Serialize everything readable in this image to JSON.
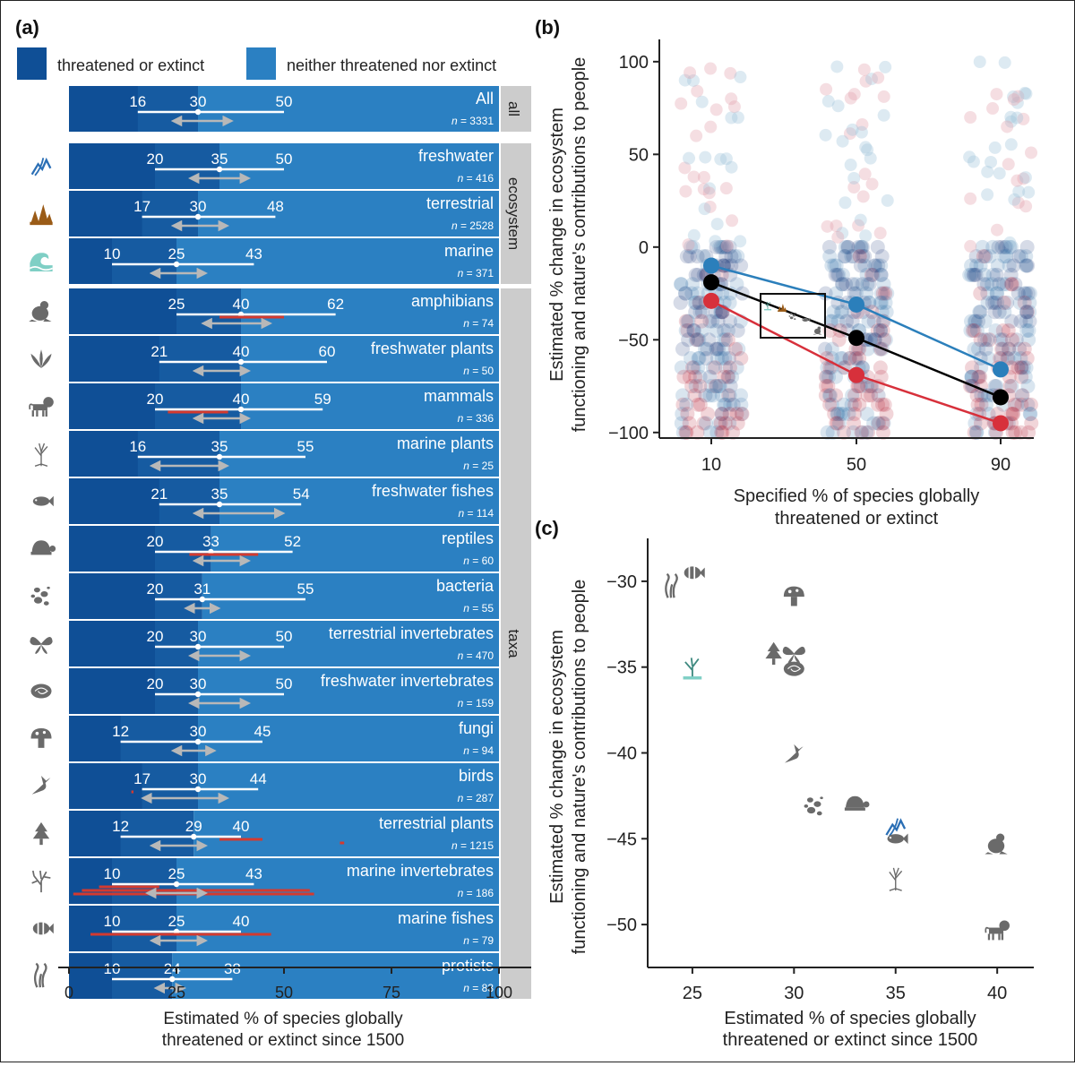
{
  "colors": {
    "threatened": "#0f4f96",
    "neither": "#2b80c2",
    "white_line": "#ffffff",
    "grey_arrow": "#b8b8b8",
    "red_line": "#d43a2f",
    "strip": "#cccccc",
    "series_blue": "#2b7fbb",
    "series_black": "#000000",
    "series_red": "#d7303b",
    "icon_grey": "#6a6a6a",
    "icon_blue": "#2b6fb5",
    "icon_brown": "#9a5b17",
    "icon_teal": "#7fcfc5"
  },
  "panel_a": {
    "label": "(a)",
    "legend": [
      "threatened or extinct",
      "neither threatened nor extinct"
    ],
    "xlabel": [
      "Estimated % of species globally",
      "threatened or extinct since 1500"
    ],
    "xticks": [
      0,
      25,
      50,
      75,
      100
    ],
    "n_prefix": "n",
    "groups": [
      {
        "strip": "all",
        "rows": [
          {
            "name": "All",
            "n": "= 3331",
            "icon": "none",
            "low": 16,
            "mid": 30,
            "high": 50,
            "arrow": [
              25,
              37
            ],
            "red": []
          }
        ]
      },
      {
        "strip": "ecosystem",
        "rows": [
          {
            "name": "freshwater",
            "n": "= 416",
            "icon": "river-icon",
            "low": 20,
            "mid": 35,
            "high": 50,
            "arrow": [
              29,
              41
            ],
            "red": []
          },
          {
            "name": "terrestrial",
            "n": "= 2528",
            "icon": "forest-icon",
            "low": 17,
            "mid": 30,
            "high": 48,
            "arrow": [
              25,
              36
            ],
            "red": []
          },
          {
            "name": "marine",
            "n": "= 371",
            "icon": "wave-icon",
            "low": 10,
            "mid": 25,
            "high": 43,
            "arrow": [
              20,
              31
            ],
            "red": []
          }
        ]
      },
      {
        "strip": "taxa",
        "rows": [
          {
            "name": "amphibians",
            "n": "= 74",
            "icon": "frog-icon",
            "low": 25,
            "mid": 40,
            "high": 62,
            "arrow": [
              32,
              46
            ],
            "red": [
              [
                35,
                50
              ]
            ]
          },
          {
            "name": "freshwater plants",
            "n": "= 50",
            "icon": "aquatic-plant-icon",
            "low": 21,
            "mid": 40,
            "high": 60,
            "arrow": [
              30,
              41
            ],
            "red": []
          },
          {
            "name": "mammals",
            "n": "= 336",
            "icon": "lion-icon",
            "low": 20,
            "mid": 40,
            "high": 59,
            "arrow": [
              30,
              41
            ],
            "red": [
              [
                23,
                37
              ]
            ]
          },
          {
            "name": "marine plants",
            "n": "= 25",
            "icon": "mangrove-icon",
            "low": 16,
            "mid": 35,
            "high": 55,
            "arrow": [
              20,
              36
            ],
            "red": []
          },
          {
            "name": "freshwater fishes",
            "n": "= 114",
            "icon": "fish-icon",
            "low": 21,
            "mid": 35,
            "high": 54,
            "arrow": [
              30,
              49
            ],
            "red": []
          },
          {
            "name": "reptiles",
            "n": "= 60",
            "icon": "turtle-icon",
            "low": 20,
            "mid": 33,
            "high": 52,
            "arrow": [
              30,
              41
            ],
            "red": [
              [
                28,
                44
              ]
            ]
          },
          {
            "name": "bacteria",
            "n": "= 55",
            "icon": "bacteria-icon",
            "low": 20,
            "mid": 31,
            "high": 55,
            "arrow": [
              28,
              34
            ],
            "red": []
          },
          {
            "name": "terrestrial invertebrates",
            "n": "= 470",
            "icon": "butterfly-icon",
            "low": 20,
            "mid": 30,
            "high": 50,
            "arrow": [
              29,
              41
            ],
            "red": []
          },
          {
            "name": "freshwater invertebrates",
            "n": "= 159",
            "icon": "snail-icon",
            "low": 20,
            "mid": 30,
            "high": 50,
            "arrow": [
              29,
              41
            ],
            "red": []
          },
          {
            "name": "fungi",
            "n": "= 94",
            "icon": "mushroom-icon",
            "low": 12,
            "mid": 30,
            "high": 45,
            "arrow": [
              25,
              33
            ],
            "red": []
          },
          {
            "name": "birds",
            "n": "= 287",
            "icon": "hummingbird-icon",
            "low": 17,
            "mid": 30,
            "high": 44,
            "arrow": [
              18,
              36
            ],
            "red": [
              [
                14.5,
                15
              ]
            ]
          },
          {
            "name": "terrestrial plants",
            "n": "= 1215",
            "icon": "tree-icon",
            "low": 12,
            "mid": 29,
            "high": 40,
            "arrow": [
              20,
              31
            ],
            "red": [
              [
                35,
                45
              ],
              [
                63,
                64
              ]
            ]
          },
          {
            "name": "marine invertebrates",
            "n": "= 186",
            "icon": "coral-icon",
            "low": 10,
            "mid": 25,
            "high": 43,
            "arrow": [
              19,
              31
            ],
            "red": [
              [
                7,
                21
              ],
              [
                3,
                56
              ],
              [
                1,
                57
              ]
            ]
          },
          {
            "name": "marine fishes",
            "n": "= 79",
            "icon": "clownfish-icon",
            "low": 10,
            "mid": 25,
            "high": 40,
            "arrow": [
              20,
              31
            ],
            "red": [
              [
                5,
                47
              ]
            ]
          },
          {
            "name": "protists",
            "n": "= 83",
            "icon": "algae-icon",
            "low": 10,
            "mid": 24,
            "high": 38,
            "arrow": [
              21,
              26
            ],
            "red": []
          }
        ]
      }
    ]
  },
  "chart_data": [
    {
      "panel": "(b)",
      "type": "scatter",
      "title": "",
      "xlabel": "Specified % of species globally threatened or extinct",
      "ylabel": "Estimated % change in ecosystem functioning and nature's contributions to people",
      "categories": [
        10,
        50,
        90
      ],
      "ylim": [
        -103,
        112
      ],
      "yticks": [
        100,
        50,
        0,
        -50,
        -100
      ],
      "series": [
        {
          "name": "blue",
          "values": [
            -10,
            -31,
            -66
          ]
        },
        {
          "name": "black",
          "values": [
            -19,
            -49,
            -81
          ]
        },
        {
          "name": "red",
          "values": [
            -29,
            -69,
            -95
          ]
        }
      ]
    },
    {
      "panel": "(c)",
      "type": "scatter",
      "xlabel": "Estimated % of species globally threatened or extinct since 1500",
      "ylabel": "Estimated % change in ecosystem functioning and nature's contributions to people",
      "xlim": [
        22.8,
        41.8
      ],
      "ylim": [
        -52.5,
        -27.5
      ],
      "xticks": [
        25,
        30,
        35,
        40
      ],
      "yticks": [
        -30,
        -35,
        -40,
        -45,
        -50
      ],
      "points": [
        {
          "label": "protists",
          "x": 24,
          "y": -30.3
        },
        {
          "label": "marine fishes",
          "x": 25,
          "y": -29.5
        },
        {
          "label": "marine invertebrates",
          "x": 25,
          "y": -35.0
        },
        {
          "label": "fungi",
          "x": 30,
          "y": -30.9
        },
        {
          "label": "terrestrial plants",
          "x": 29,
          "y": -34.2
        },
        {
          "label": "terrestrial invertebrates",
          "x": 30,
          "y": -34.2
        },
        {
          "label": "freshwater invertebrates",
          "x": 30,
          "y": -35.1
        },
        {
          "label": "birds",
          "x": 30,
          "y": -40.1
        },
        {
          "label": "bacteria",
          "x": 31,
          "y": -43.1
        },
        {
          "label": "reptiles",
          "x": 33,
          "y": -43.0
        },
        {
          "label": "freshwater",
          "x": 35,
          "y": -44.3
        },
        {
          "label": "freshwater fishes",
          "x": 35,
          "y": -45.0
        },
        {
          "label": "marine plants",
          "x": 35,
          "y": -47.3
        },
        {
          "label": "amphibians",
          "x": 40,
          "y": -45.3
        },
        {
          "label": "mammals",
          "x": 40,
          "y": -50.3
        }
      ]
    }
  ],
  "panel_b": {
    "label": "(b)",
    "xlabel": [
      "Specified % of species globally",
      "threatened or extinct"
    ],
    "ylabel": [
      "Estimated % change in ecosystem",
      "functioning and nature's contributions to people"
    ]
  },
  "panel_c": {
    "label": "(c)",
    "xlabel": [
      "Estimated % of species globally",
      "threatened or extinct since 1500"
    ],
    "ylabel": [
      "Estimated % change in ecosystem",
      "functioning and nature's contributions to people"
    ]
  }
}
